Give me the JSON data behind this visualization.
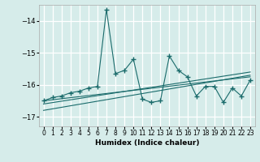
{
  "xlabel": "Humidex (Indice chaleur)",
  "ylabel": "",
  "xlim": [
    -0.5,
    23.5
  ],
  "ylim": [
    -17.3,
    -13.5
  ],
  "yticks": [
    -17,
    -16,
    -15,
    -14
  ],
  "xticks": [
    0,
    1,
    2,
    3,
    4,
    5,
    6,
    7,
    8,
    9,
    10,
    11,
    12,
    13,
    14,
    15,
    16,
    17,
    18,
    19,
    20,
    21,
    22,
    23
  ],
  "bg_color": "#d6ecea",
  "grid_color": "#ffffff",
  "line_color": "#1a6b6b",
  "series": [
    [
      0,
      -16.5
    ],
    [
      1,
      -16.4
    ],
    [
      2,
      -16.35
    ],
    [
      3,
      -16.25
    ],
    [
      4,
      -16.2
    ],
    [
      5,
      -16.1
    ],
    [
      6,
      -16.05
    ],
    [
      7,
      -13.65
    ],
    [
      8,
      -15.65
    ],
    [
      9,
      -15.55
    ],
    [
      10,
      -15.2
    ],
    [
      11,
      -16.45
    ],
    [
      12,
      -16.55
    ],
    [
      13,
      -16.5
    ],
    [
      14,
      -15.1
    ],
    [
      15,
      -15.55
    ],
    [
      16,
      -15.75
    ],
    [
      17,
      -16.35
    ],
    [
      18,
      -16.05
    ],
    [
      19,
      -16.05
    ],
    [
      20,
      -16.55
    ],
    [
      21,
      -16.1
    ],
    [
      22,
      -16.35
    ],
    [
      23,
      -15.85
    ]
  ],
  "trend_lines": [
    [
      [
        0,
        -16.5
      ],
      [
        23,
        -15.75
      ]
    ],
    [
      [
        0,
        -16.6
      ],
      [
        23,
        -15.6
      ]
    ],
    [
      [
        0,
        -16.8
      ],
      [
        23,
        -15.7
      ]
    ]
  ]
}
